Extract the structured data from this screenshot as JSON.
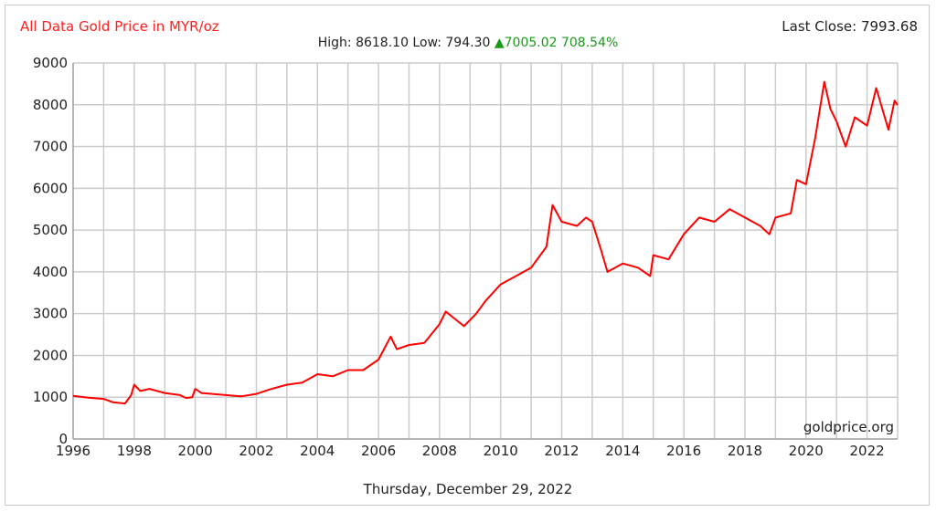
{
  "header": {
    "title": "All Data Gold Price in MYR/oz",
    "last_close": "Last Close: 7993.68",
    "high_low": "High: 8618.10 Low: 794.30",
    "change_icon": "triangle-up-icon",
    "change": "7005.02 708.54%"
  },
  "footer": {
    "date": "Thursday, December 29, 2022",
    "credit": "goldprice.org"
  },
  "colors": {
    "line": "#ff0000",
    "grid": "#cccccc",
    "up": "#1a9a1a"
  },
  "chart_data": {
    "type": "line",
    "title": "All Data Gold Price in MYR/oz",
    "xlabel": "",
    "ylabel": "",
    "xlim": [
      1996,
      2023
    ],
    "ylim": [
      0,
      9000
    ],
    "grid": true,
    "x_ticks": [
      "1996",
      "1998",
      "2000",
      "2002",
      "2004",
      "2006",
      "2008",
      "2010",
      "2012",
      "2014",
      "2016",
      "2018",
      "2020",
      "2022"
    ],
    "y_ticks": [
      "0",
      "1000",
      "2000",
      "3000",
      "4000",
      "5000",
      "6000",
      "7000",
      "8000",
      "9000"
    ],
    "series": [
      {
        "name": "Gold Price MYR/oz",
        "x": [
          1996.0,
          1996.5,
          1997.0,
          1997.3,
          1997.7,
          1997.9,
          1998.0,
          1998.2,
          1998.5,
          1999.0,
          1999.5,
          1999.7,
          1999.9,
          2000.0,
          2000.2,
          2001.0,
          2001.5,
          2002.0,
          2002.5,
          2003.0,
          2003.5,
          2004.0,
          2004.5,
          2005.0,
          2005.5,
          2006.0,
          2006.4,
          2006.6,
          2007.0,
          2007.5,
          2008.0,
          2008.2,
          2008.8,
          2009.2,
          2009.5,
          2010.0,
          2010.5,
          2011.0,
          2011.5,
          2011.7,
          2012.0,
          2012.5,
          2012.8,
          2013.0,
          2013.3,
          2013.5,
          2014.0,
          2014.5,
          2014.9,
          2015.0,
          2015.5,
          2016.0,
          2016.5,
          2017.0,
          2017.5,
          2018.0,
          2018.5,
          2018.8,
          2019.0,
          2019.5,
          2019.7,
          2020.0,
          2020.3,
          2020.6,
          2020.8,
          2021.0,
          2021.3,
          2021.6,
          2022.0,
          2022.3,
          2022.5,
          2022.7,
          2022.9,
          2023.0
        ],
        "y": [
          1030,
          990,
          960,
          880,
          850,
          1050,
          1300,
          1150,
          1200,
          1100,
          1050,
          980,
          1000,
          1200,
          1100,
          1050,
          1020,
          1080,
          1200,
          1300,
          1350,
          1550,
          1500,
          1650,
          1650,
          1900,
          2450,
          2150,
          2250,
          2300,
          2750,
          3050,
          2700,
          3000,
          3300,
          3700,
          3900,
          4100,
          4600,
          5600,
          5200,
          5100,
          5300,
          5200,
          4500,
          4000,
          4200,
          4100,
          3900,
          4400,
          4300,
          4900,
          5300,
          5200,
          5500,
          5300,
          5100,
          4900,
          5300,
          5400,
          6200,
          6100,
          7200,
          8550,
          7900,
          7600,
          7000,
          7700,
          7500,
          8400,
          7900,
          7400,
          8100,
          7990
        ]
      }
    ]
  }
}
